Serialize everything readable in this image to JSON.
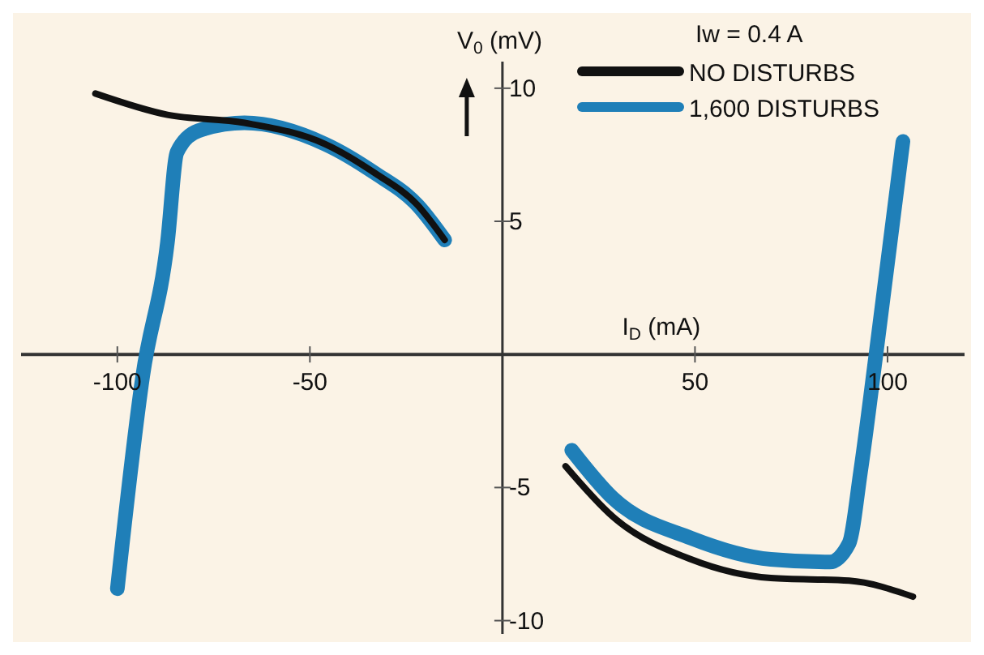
{
  "chart_data": {
    "type": "line",
    "xlabel": "I$_{D}$ (mA)",
    "ylabel": "V$_{0}$ (mV)",
    "legend_title": "Iw = 0.4 A",
    "legend": "top right",
    "marker": "none",
    "line_style": "solid",
    "xlim": [
      -125,
      120
    ],
    "ylim": [
      -10.5,
      11
    ],
    "xticks": [
      -100,
      -50,
      50,
      100
    ],
    "yticks": [
      -10,
      -5,
      5,
      10
    ],
    "series": [
      {
        "name": "NO DISTURBS",
        "color": "#111111",
        "x": [
          -105.7,
          -87,
          -67,
          -46,
          -33,
          -22,
          -15,
          null,
          16.4,
          28.7,
          49,
          69.7,
          90,
          106.6
        ],
        "values": [
          9.8,
          9.0,
          8.7,
          7.9,
          6.8,
          5.6,
          4.3,
          null,
          -4.2,
          -6.1,
          -7.7,
          -8.4,
          -8.5,
          -9.1
        ]
      },
      {
        "name": "1,600 DISTURBS",
        "color": "#1f7fb8",
        "x": [
          -100,
          -93.4,
          -87,
          -84.5,
          -79,
          -67,
          -46,
          -33,
          -22,
          -15,
          null,
          18,
          28.7,
          49,
          69.7,
          85,
          90,
          93,
          97,
          104
        ],
        "values": [
          -8.8,
          -0.8,
          4.2,
          7.6,
          8.4,
          8.7,
          7.9,
          6.8,
          5.6,
          4.3,
          null,
          -3.6,
          -5.4,
          -6.9,
          -7.7,
          -7.8,
          -7.1,
          -4.4,
          0,
          8.0
        ]
      }
    ]
  }
}
